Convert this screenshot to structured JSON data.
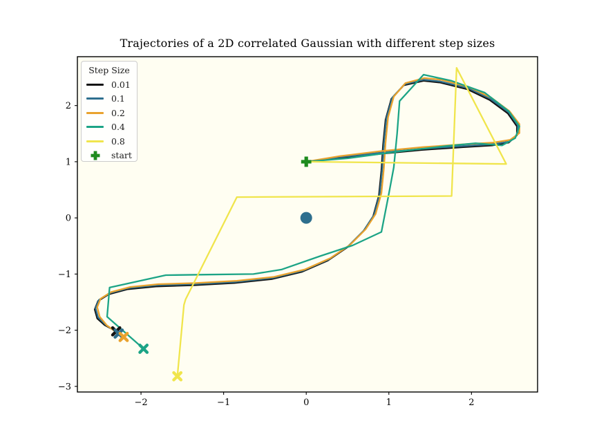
{
  "title": "Trajectories of a 2D correlated Gaussian with different step sizes",
  "chart_data": {
    "type": "line",
    "title": "Trajectories of a 2D correlated Gaussian with different step sizes",
    "description": "Sampling/flow trajectories over a 2D correlated Gaussian, one polyline per step size; all start at the green plus (0,1), distribution mean shown as a dot at (0,0), each trajectory ends at an X marker.",
    "colors": {
      "plot_background": "#fffef2",
      "figure_background": "#ffffff",
      "spine": "#000000",
      "tick_label": "#000000",
      "center_dot": "#2e6f8e",
      "start_marker": "#1e8b1e"
    },
    "axes": {
      "xlim": [
        -2.77,
        2.8
      ],
      "ylim": [
        -3.1,
        2.87
      ],
      "x_ticks": [
        {
          "v": -2,
          "label": "−2"
        },
        {
          "v": -1,
          "label": "−1"
        },
        {
          "v": 0,
          "label": "0"
        },
        {
          "v": 1,
          "label": "1"
        },
        {
          "v": 2,
          "label": "2"
        }
      ],
      "y_ticks": [
        {
          "v": -3,
          "label": "−3"
        },
        {
          "v": -2,
          "label": "−2"
        },
        {
          "v": -1,
          "label": "−1"
        },
        {
          "v": 0,
          "label": "0"
        },
        {
          "v": 1,
          "label": "1"
        },
        {
          "v": 2,
          "label": "2"
        }
      ],
      "grid": false
    },
    "legend": {
      "title": "Step Size",
      "position": "upper left",
      "entries": [
        {
          "label": "0.01",
          "color": "#131313",
          "marker": "line"
        },
        {
          "label": "0.1",
          "color": "#2e6f8e",
          "marker": "line"
        },
        {
          "label": "0.2",
          "color": "#e9a22e",
          "marker": "line"
        },
        {
          "label": "0.4",
          "color": "#1ca486",
          "marker": "line"
        },
        {
          "label": "0.8",
          "color": "#f0e54c",
          "marker": "line"
        },
        {
          "label": "start",
          "color": "#1e8b1e",
          "marker": "plus"
        }
      ]
    },
    "markers": {
      "start": {
        "x": 0,
        "y": 1,
        "color": "#1e8b1e",
        "shape": "plus"
      },
      "mean": {
        "x": 0,
        "y": 0,
        "color": "#2e6f8e",
        "shape": "dot"
      }
    },
    "series": [
      {
        "name": "0.01",
        "color": "#131313",
        "end_marker": [
          -2.3,
          -2.02
        ],
        "points": [
          [
            0.0,
            1.0
          ],
          [
            0.4,
            1.06
          ],
          [
            0.9,
            1.14
          ],
          [
            1.4,
            1.21
          ],
          [
            1.9,
            1.26
          ],
          [
            2.25,
            1.29
          ],
          [
            2.45,
            1.34
          ],
          [
            2.55,
            1.47
          ],
          [
            2.55,
            1.63
          ],
          [
            2.44,
            1.86
          ],
          [
            2.22,
            2.1
          ],
          [
            1.95,
            2.29
          ],
          [
            1.62,
            2.41
          ],
          [
            1.42,
            2.44
          ],
          [
            1.18,
            2.36
          ],
          [
            1.03,
            2.12
          ],
          [
            0.96,
            1.75
          ],
          [
            0.93,
            1.3
          ],
          [
            0.91,
            0.85
          ],
          [
            0.88,
            0.4
          ],
          [
            0.81,
            0.03
          ],
          [
            0.69,
            -0.24
          ],
          [
            0.5,
            -0.52
          ],
          [
            0.26,
            -0.76
          ],
          [
            -0.05,
            -0.96
          ],
          [
            -0.42,
            -1.09
          ],
          [
            -0.87,
            -1.16
          ],
          [
            -1.37,
            -1.2
          ],
          [
            -1.82,
            -1.22
          ],
          [
            -2.16,
            -1.27
          ],
          [
            -2.39,
            -1.36
          ],
          [
            -2.52,
            -1.48
          ],
          [
            -2.56,
            -1.63
          ],
          [
            -2.53,
            -1.79
          ],
          [
            -2.44,
            -1.91
          ],
          [
            -2.3,
            -2.02
          ]
        ]
      },
      {
        "name": "0.1",
        "color": "#2e6f8e",
        "end_marker": [
          -2.27,
          -2.06
        ],
        "points": [
          [
            0.0,
            1.0
          ],
          [
            0.4,
            1.08
          ],
          [
            0.9,
            1.16
          ],
          [
            1.4,
            1.23
          ],
          [
            1.9,
            1.28
          ],
          [
            2.25,
            1.31
          ],
          [
            2.46,
            1.36
          ],
          [
            2.56,
            1.49
          ],
          [
            2.56,
            1.65
          ],
          [
            2.45,
            1.88
          ],
          [
            2.23,
            2.12
          ],
          [
            1.96,
            2.31
          ],
          [
            1.62,
            2.43
          ],
          [
            1.42,
            2.46
          ],
          [
            1.19,
            2.38
          ],
          [
            1.04,
            2.14
          ],
          [
            0.97,
            1.77
          ],
          [
            0.94,
            1.32
          ],
          [
            0.92,
            0.87
          ],
          [
            0.89,
            0.42
          ],
          [
            0.82,
            0.05
          ],
          [
            0.7,
            -0.22
          ],
          [
            0.51,
            -0.5
          ],
          [
            0.27,
            -0.74
          ],
          [
            -0.04,
            -0.94
          ],
          [
            -0.41,
            -1.07
          ],
          [
            -0.86,
            -1.14
          ],
          [
            -1.36,
            -1.18
          ],
          [
            -1.81,
            -1.2
          ],
          [
            -2.15,
            -1.25
          ],
          [
            -2.38,
            -1.34
          ],
          [
            -2.51,
            -1.46
          ],
          [
            -2.55,
            -1.61
          ],
          [
            -2.52,
            -1.77
          ],
          [
            -2.43,
            -1.9
          ],
          [
            -2.27,
            -2.06
          ]
        ]
      },
      {
        "name": "0.2",
        "color": "#e9a22e",
        "end_marker": [
          -2.21,
          -2.12
        ],
        "points": [
          [
            0.0,
            1.0
          ],
          [
            0.41,
            1.1
          ],
          [
            0.91,
            1.19
          ],
          [
            1.41,
            1.26
          ],
          [
            1.91,
            1.31
          ],
          [
            2.26,
            1.34
          ],
          [
            2.47,
            1.39
          ],
          [
            2.58,
            1.51
          ],
          [
            2.58,
            1.67
          ],
          [
            2.46,
            1.9
          ],
          [
            2.24,
            2.14
          ],
          [
            1.97,
            2.33
          ],
          [
            1.63,
            2.46
          ],
          [
            1.43,
            2.49
          ],
          [
            1.2,
            2.4
          ],
          [
            1.06,
            2.16
          ],
          [
            0.99,
            1.79
          ],
          [
            0.96,
            1.34
          ],
          [
            0.94,
            0.89
          ],
          [
            0.91,
            0.44
          ],
          [
            0.84,
            0.07
          ],
          [
            0.72,
            -0.2
          ],
          [
            0.53,
            -0.48
          ],
          [
            0.29,
            -0.72
          ],
          [
            -0.02,
            -0.92
          ],
          [
            -0.39,
            -1.05
          ],
          [
            -0.84,
            -1.12
          ],
          [
            -1.34,
            -1.16
          ],
          [
            -1.79,
            -1.18
          ],
          [
            -2.13,
            -1.23
          ],
          [
            -2.36,
            -1.32
          ],
          [
            -2.49,
            -1.44
          ],
          [
            -2.53,
            -1.59
          ],
          [
            -2.5,
            -1.76
          ],
          [
            -2.41,
            -1.92
          ],
          [
            -2.21,
            -2.12
          ]
        ]
      },
      {
        "name": "0.4",
        "color": "#1ca486",
        "end_marker": [
          -1.97,
          -2.33
        ],
        "points": [
          [
            0.0,
            1.0
          ],
          [
            0.5,
            1.06
          ],
          [
            1.1,
            1.18
          ],
          [
            1.7,
            1.28
          ],
          [
            2.05,
            1.33
          ],
          [
            2.37,
            1.29
          ],
          [
            2.53,
            1.42
          ],
          [
            2.58,
            1.63
          ],
          [
            2.45,
            1.9
          ],
          [
            2.16,
            2.23
          ],
          [
            1.76,
            2.44
          ],
          [
            1.42,
            2.55
          ],
          [
            1.13,
            2.08
          ],
          [
            1.1,
            1.5
          ],
          [
            1.06,
            0.9
          ],
          [
            1.0,
            0.43
          ],
          [
            0.91,
            -0.25
          ],
          [
            0.56,
            -0.49
          ],
          [
            0.17,
            -0.68
          ],
          [
            -0.3,
            -0.92
          ],
          [
            -0.64,
            -1.0
          ],
          [
            -1.2,
            -1.01
          ],
          [
            -1.7,
            -1.02
          ],
          [
            -2.38,
            -1.24
          ],
          [
            -2.41,
            -1.76
          ],
          [
            -1.97,
            -2.33
          ]
        ]
      },
      {
        "name": "0.8",
        "color": "#f0e54c",
        "end_marker": [
          -1.56,
          -2.82
        ],
        "points": [
          [
            0.0,
            1.0
          ],
          [
            2.42,
            0.96
          ],
          [
            1.82,
            2.67
          ],
          [
            1.76,
            0.39
          ],
          [
            -0.84,
            0.37
          ],
          [
            -1.46,
            -1.45
          ],
          [
            -1.48,
            -1.55
          ],
          [
            -1.56,
            -2.82
          ]
        ]
      }
    ]
  }
}
